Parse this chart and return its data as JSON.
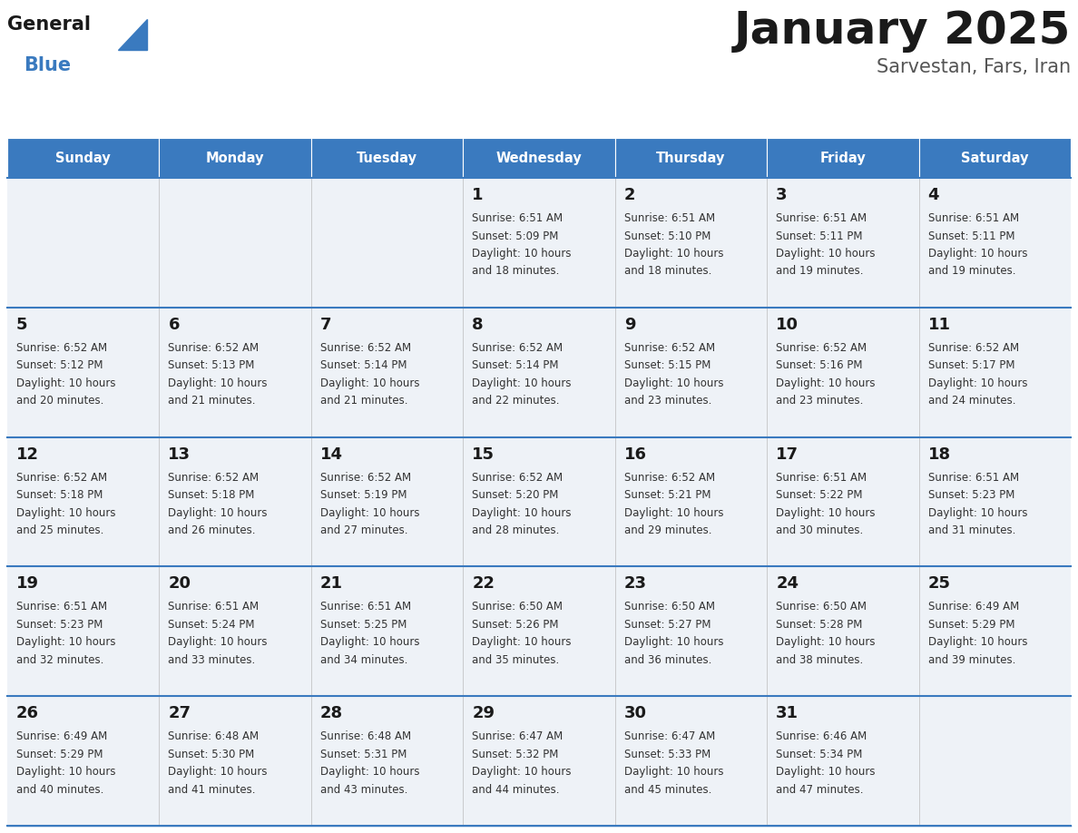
{
  "title": "January 2025",
  "subtitle": "Sarvestan, Fars, Iran",
  "header_color": "#3a7abf",
  "header_text_color": "#ffffff",
  "cell_bg_color": "#eef2f7",
  "border_color": "#3a7abf",
  "day_names": [
    "Sunday",
    "Monday",
    "Tuesday",
    "Wednesday",
    "Thursday",
    "Friday",
    "Saturday"
  ],
  "calendar": [
    [
      null,
      null,
      null,
      {
        "day": 1,
        "sunrise": "6:51 AM",
        "sunset": "5:09 PM",
        "daylight": "10 hours and 18 minutes."
      },
      {
        "day": 2,
        "sunrise": "6:51 AM",
        "sunset": "5:10 PM",
        "daylight": "10 hours and 18 minutes."
      },
      {
        "day": 3,
        "sunrise": "6:51 AM",
        "sunset": "5:11 PM",
        "daylight": "10 hours and 19 minutes."
      },
      {
        "day": 4,
        "sunrise": "6:51 AM",
        "sunset": "5:11 PM",
        "daylight": "10 hours and 19 minutes."
      }
    ],
    [
      {
        "day": 5,
        "sunrise": "6:52 AM",
        "sunset": "5:12 PM",
        "daylight": "10 hours and 20 minutes."
      },
      {
        "day": 6,
        "sunrise": "6:52 AM",
        "sunset": "5:13 PM",
        "daylight": "10 hours and 21 minutes."
      },
      {
        "day": 7,
        "sunrise": "6:52 AM",
        "sunset": "5:14 PM",
        "daylight": "10 hours and 21 minutes."
      },
      {
        "day": 8,
        "sunrise": "6:52 AM",
        "sunset": "5:14 PM",
        "daylight": "10 hours and 22 minutes."
      },
      {
        "day": 9,
        "sunrise": "6:52 AM",
        "sunset": "5:15 PM",
        "daylight": "10 hours and 23 minutes."
      },
      {
        "day": 10,
        "sunrise": "6:52 AM",
        "sunset": "5:16 PM",
        "daylight": "10 hours and 23 minutes."
      },
      {
        "day": 11,
        "sunrise": "6:52 AM",
        "sunset": "5:17 PM",
        "daylight": "10 hours and 24 minutes."
      }
    ],
    [
      {
        "day": 12,
        "sunrise": "6:52 AM",
        "sunset": "5:18 PM",
        "daylight": "10 hours and 25 minutes."
      },
      {
        "day": 13,
        "sunrise": "6:52 AM",
        "sunset": "5:18 PM",
        "daylight": "10 hours and 26 minutes."
      },
      {
        "day": 14,
        "sunrise": "6:52 AM",
        "sunset": "5:19 PM",
        "daylight": "10 hours and 27 minutes."
      },
      {
        "day": 15,
        "sunrise": "6:52 AM",
        "sunset": "5:20 PM",
        "daylight": "10 hours and 28 minutes."
      },
      {
        "day": 16,
        "sunrise": "6:52 AM",
        "sunset": "5:21 PM",
        "daylight": "10 hours and 29 minutes."
      },
      {
        "day": 17,
        "sunrise": "6:51 AM",
        "sunset": "5:22 PM",
        "daylight": "10 hours and 30 minutes."
      },
      {
        "day": 18,
        "sunrise": "6:51 AM",
        "sunset": "5:23 PM",
        "daylight": "10 hours and 31 minutes."
      }
    ],
    [
      {
        "day": 19,
        "sunrise": "6:51 AM",
        "sunset": "5:23 PM",
        "daylight": "10 hours and 32 minutes."
      },
      {
        "day": 20,
        "sunrise": "6:51 AM",
        "sunset": "5:24 PM",
        "daylight": "10 hours and 33 minutes."
      },
      {
        "day": 21,
        "sunrise": "6:51 AM",
        "sunset": "5:25 PM",
        "daylight": "10 hours and 34 minutes."
      },
      {
        "day": 22,
        "sunrise": "6:50 AM",
        "sunset": "5:26 PM",
        "daylight": "10 hours and 35 minutes."
      },
      {
        "day": 23,
        "sunrise": "6:50 AM",
        "sunset": "5:27 PM",
        "daylight": "10 hours and 36 minutes."
      },
      {
        "day": 24,
        "sunrise": "6:50 AM",
        "sunset": "5:28 PM",
        "daylight": "10 hours and 38 minutes."
      },
      {
        "day": 25,
        "sunrise": "6:49 AM",
        "sunset": "5:29 PM",
        "daylight": "10 hours and 39 minutes."
      }
    ],
    [
      {
        "day": 26,
        "sunrise": "6:49 AM",
        "sunset": "5:29 PM",
        "daylight": "10 hours and 40 minutes."
      },
      {
        "day": 27,
        "sunrise": "6:48 AM",
        "sunset": "5:30 PM",
        "daylight": "10 hours and 41 minutes."
      },
      {
        "day": 28,
        "sunrise": "6:48 AM",
        "sunset": "5:31 PM",
        "daylight": "10 hours and 43 minutes."
      },
      {
        "day": 29,
        "sunrise": "6:47 AM",
        "sunset": "5:32 PM",
        "daylight": "10 hours and 44 minutes."
      },
      {
        "day": 30,
        "sunrise": "6:47 AM",
        "sunset": "5:33 PM",
        "daylight": "10 hours and 45 minutes."
      },
      {
        "day": 31,
        "sunrise": "6:46 AM",
        "sunset": "5:34 PM",
        "daylight": "10 hours and 47 minutes."
      },
      null
    ]
  ],
  "logo_general_color": "#1a1a1a",
  "logo_blue_color": "#3a7abf",
  "title_color": "#1a1a1a",
  "subtitle_color": "#555555",
  "day_num_color": "#1a1a1a",
  "cell_text_color": "#333333"
}
